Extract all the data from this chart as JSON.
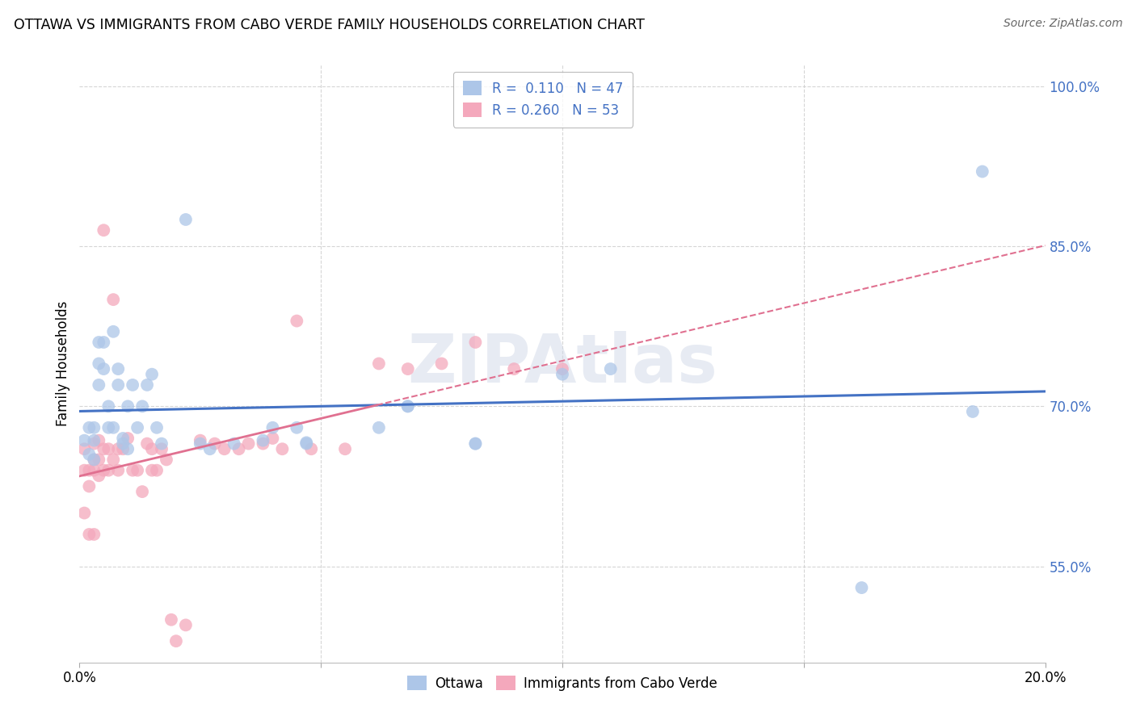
{
  "title": "OTTAWA VS IMMIGRANTS FROM CABO VERDE FAMILY HOUSEHOLDS CORRELATION CHART",
  "source": "Source: ZipAtlas.com",
  "ylabel": "Family Households",
  "xlim": [
    0.0,
    0.2
  ],
  "ylim": [
    0.46,
    1.02
  ],
  "yticks": [
    0.55,
    0.7,
    0.85,
    1.0
  ],
  "ytick_labels": [
    "55.0%",
    "70.0%",
    "85.0%",
    "100.0%"
  ],
  "ottawa_R": 0.11,
  "ottawa_N": 47,
  "cabo_verde_R": 0.26,
  "cabo_verde_N": 53,
  "ottawa_color": "#adc6e8",
  "cabo_verde_color": "#f4a8bc",
  "trend_blue": "#4472c4",
  "trend_pink": "#e07090",
  "ottawa_x": [
    0.001,
    0.002,
    0.002,
    0.003,
    0.003,
    0.003,
    0.004,
    0.004,
    0.004,
    0.005,
    0.005,
    0.006,
    0.006,
    0.007,
    0.007,
    0.008,
    0.008,
    0.009,
    0.009,
    0.01,
    0.01,
    0.011,
    0.012,
    0.013,
    0.014,
    0.015,
    0.016,
    0.017,
    0.022,
    0.025,
    0.027,
    0.032,
    0.038,
    0.04,
    0.045,
    0.047,
    0.047,
    0.062,
    0.068,
    0.068,
    0.082,
    0.082,
    0.1,
    0.11,
    0.162,
    0.185,
    0.187
  ],
  "ottawa_y": [
    0.668,
    0.68,
    0.655,
    0.68,
    0.668,
    0.65,
    0.74,
    0.76,
    0.72,
    0.735,
    0.76,
    0.68,
    0.7,
    0.77,
    0.68,
    0.72,
    0.735,
    0.67,
    0.665,
    0.66,
    0.7,
    0.72,
    0.68,
    0.7,
    0.72,
    0.73,
    0.68,
    0.665,
    0.875,
    0.665,
    0.66,
    0.665,
    0.668,
    0.68,
    0.68,
    0.665,
    0.666,
    0.68,
    0.7,
    0.7,
    0.665,
    0.665,
    0.73,
    0.735,
    0.53,
    0.695,
    0.92
  ],
  "cabo_verde_x": [
    0.001,
    0.001,
    0.001,
    0.002,
    0.002,
    0.002,
    0.003,
    0.003,
    0.003,
    0.003,
    0.004,
    0.004,
    0.004,
    0.005,
    0.005,
    0.005,
    0.006,
    0.006,
    0.007,
    0.007,
    0.008,
    0.008,
    0.009,
    0.01,
    0.011,
    0.012,
    0.013,
    0.014,
    0.015,
    0.015,
    0.016,
    0.017,
    0.018,
    0.019,
    0.02,
    0.022,
    0.025,
    0.028,
    0.03,
    0.033,
    0.035,
    0.038,
    0.04,
    0.042,
    0.045,
    0.048,
    0.055,
    0.062,
    0.068,
    0.075,
    0.082,
    0.09,
    0.1
  ],
  "cabo_verde_y": [
    0.66,
    0.64,
    0.6,
    0.64,
    0.625,
    0.58,
    0.665,
    0.65,
    0.64,
    0.58,
    0.668,
    0.65,
    0.635,
    0.865,
    0.66,
    0.64,
    0.66,
    0.64,
    0.8,
    0.65,
    0.66,
    0.64,
    0.66,
    0.67,
    0.64,
    0.64,
    0.62,
    0.665,
    0.66,
    0.64,
    0.64,
    0.66,
    0.65,
    0.5,
    0.48,
    0.495,
    0.668,
    0.665,
    0.66,
    0.66,
    0.665,
    0.665,
    0.67,
    0.66,
    0.78,
    0.66,
    0.66,
    0.74,
    0.735,
    0.74,
    0.76,
    0.735,
    0.735
  ],
  "watermark": "ZIPAtlas",
  "background_color": "#ffffff",
  "grid_color": "#cccccc"
}
